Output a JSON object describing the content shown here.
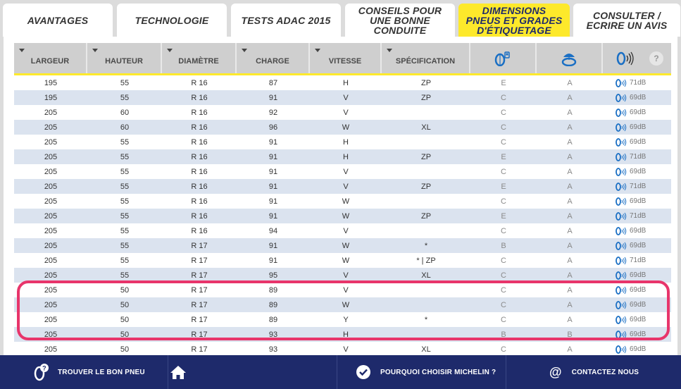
{
  "tabs": [
    {
      "label": "AVANTAGES",
      "active": false
    },
    {
      "label": "TECHNOLOGIE",
      "active": false
    },
    {
      "label": "TESTS ADAC 2015",
      "active": false
    },
    {
      "label": "CONSEILS POUR UNE BONNE CONDUITE",
      "active": false
    },
    {
      "label": "DIMENSIONS PNEUS ET GRADES D'ÉTIQUETAGE",
      "active": true
    },
    {
      "label": "CONSULTER / ECRIRE UN AVIS",
      "active": false
    }
  ],
  "table": {
    "columns": [
      {
        "label": "LARGEUR",
        "sortable": true
      },
      {
        "label": "HAUTEUR",
        "sortable": true
      },
      {
        "label": "DIAMÈTRE",
        "sortable": true
      },
      {
        "label": "CHARGE",
        "sortable": true
      },
      {
        "label": "VITESSE",
        "sortable": true
      },
      {
        "label": "SPÉCIFICATION",
        "sortable": true
      },
      {
        "label": "",
        "icon": "fuel-efficiency-icon"
      },
      {
        "label": "",
        "icon": "wet-grip-icon"
      },
      {
        "label": "",
        "icon": "noise-icon"
      }
    ],
    "help_label": "?",
    "rows": [
      {
        "largeur": "195",
        "hauteur": "55",
        "diametre": "R 16",
        "charge": "87",
        "vitesse": "H",
        "spec": "ZP",
        "fuel": "E",
        "wet": "A",
        "noise": "71dB"
      },
      {
        "largeur": "195",
        "hauteur": "55",
        "diametre": "R 16",
        "charge": "91",
        "vitesse": "V",
        "spec": "ZP",
        "fuel": "C",
        "wet": "A",
        "noise": "69dB"
      },
      {
        "largeur": "205",
        "hauteur": "60",
        "diametre": "R 16",
        "charge": "92",
        "vitesse": "V",
        "spec": "",
        "fuel": "C",
        "wet": "A",
        "noise": "69dB"
      },
      {
        "largeur": "205",
        "hauteur": "60",
        "diametre": "R 16",
        "charge": "96",
        "vitesse": "W",
        "spec": "XL",
        "fuel": "C",
        "wet": "A",
        "noise": "69dB"
      },
      {
        "largeur": "205",
        "hauteur": "55",
        "diametre": "R 16",
        "charge": "91",
        "vitesse": "H",
        "spec": "",
        "fuel": "C",
        "wet": "A",
        "noise": "69dB"
      },
      {
        "largeur": "205",
        "hauteur": "55",
        "diametre": "R 16",
        "charge": "91",
        "vitesse": "H",
        "spec": "ZP",
        "fuel": "E",
        "wet": "A",
        "noise": "71dB"
      },
      {
        "largeur": "205",
        "hauteur": "55",
        "diametre": "R 16",
        "charge": "91",
        "vitesse": "V",
        "spec": "",
        "fuel": "C",
        "wet": "A",
        "noise": "69dB"
      },
      {
        "largeur": "205",
        "hauteur": "55",
        "diametre": "R 16",
        "charge": "91",
        "vitesse": "V",
        "spec": "ZP",
        "fuel": "E",
        "wet": "A",
        "noise": "71dB"
      },
      {
        "largeur": "205",
        "hauteur": "55",
        "diametre": "R 16",
        "charge": "91",
        "vitesse": "W",
        "spec": "",
        "fuel": "C",
        "wet": "A",
        "noise": "69dB"
      },
      {
        "largeur": "205",
        "hauteur": "55",
        "diametre": "R 16",
        "charge": "91",
        "vitesse": "W",
        "spec": "ZP",
        "fuel": "E",
        "wet": "A",
        "noise": "71dB"
      },
      {
        "largeur": "205",
        "hauteur": "55",
        "diametre": "R 16",
        "charge": "94",
        "vitesse": "V",
        "spec": "",
        "fuel": "C",
        "wet": "A",
        "noise": "69dB"
      },
      {
        "largeur": "205",
        "hauteur": "55",
        "diametre": "R 17",
        "charge": "91",
        "vitesse": "W",
        "spec": "*",
        "fuel": "B",
        "wet": "A",
        "noise": "69dB"
      },
      {
        "largeur": "205",
        "hauteur": "55",
        "diametre": "R 17",
        "charge": "91",
        "vitesse": "W",
        "spec": "* | ZP",
        "fuel": "C",
        "wet": "A",
        "noise": "71dB"
      },
      {
        "largeur": "205",
        "hauteur": "55",
        "diametre": "R 17",
        "charge": "95",
        "vitesse": "V",
        "spec": "XL",
        "fuel": "C",
        "wet": "A",
        "noise": "69dB"
      },
      {
        "largeur": "205",
        "hauteur": "50",
        "diametre": "R 17",
        "charge": "89",
        "vitesse": "V",
        "spec": "",
        "fuel": "C",
        "wet": "A",
        "noise": "69dB"
      },
      {
        "largeur": "205",
        "hauteur": "50",
        "diametre": "R 17",
        "charge": "89",
        "vitesse": "W",
        "spec": "",
        "fuel": "C",
        "wet": "A",
        "noise": "69dB"
      },
      {
        "largeur": "205",
        "hauteur": "50",
        "diametre": "R 17",
        "charge": "89",
        "vitesse": "Y",
        "spec": "*",
        "fuel": "C",
        "wet": "A",
        "noise": "69dB"
      },
      {
        "largeur": "205",
        "hauteur": "50",
        "diametre": "R 17",
        "charge": "93",
        "vitesse": "H",
        "spec": "",
        "fuel": "B",
        "wet": "B",
        "noise": "69dB"
      },
      {
        "largeur": "205",
        "hauteur": "50",
        "diametre": "R 17",
        "charge": "93",
        "vitesse": "V",
        "spec": "XL",
        "fuel": "C",
        "wet": "A",
        "noise": "69dB"
      }
    ]
  },
  "bottom_nav": [
    {
      "label": "TROUVER LE BON PNEU",
      "icon": "tire-help-icon"
    },
    {
      "label": "",
      "icon": "home-icon"
    },
    {
      "label": "POURQUOI CHOISIR MICHELIN ?",
      "icon": "check-circle-icon"
    },
    {
      "label": "CONTACTEZ NOUS",
      "icon": "at-sign-icon"
    }
  ],
  "colors": {
    "active_tab": "#fde92b",
    "nav_bar": "#1e2a6b",
    "row_alt": "#dbe3ef",
    "highlight": "#e8356b",
    "icon_blue": "#1a6fc4"
  }
}
